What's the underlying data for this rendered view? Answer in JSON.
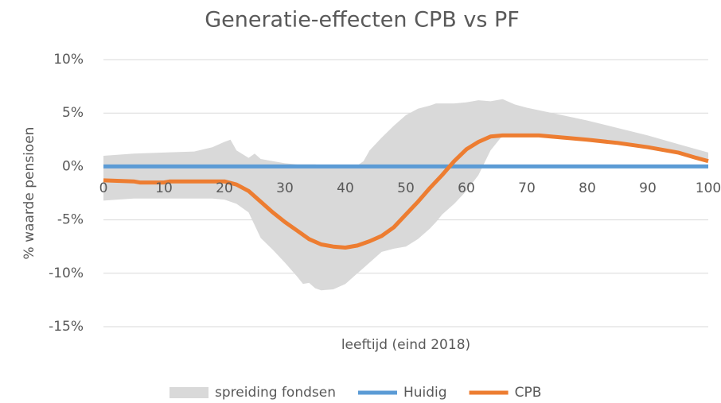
{
  "chart_data": {
    "type": "line",
    "title": "Generatie-effecten CPB vs PF",
    "x_label": "leeftijd (eind 2018)",
    "y_label": "% waarde pensioen",
    "xlim": [
      0,
      100
    ],
    "xticks": [
      0,
      10,
      20,
      30,
      40,
      50,
      60,
      70,
      80,
      90,
      100
    ],
    "ylim": [
      -15,
      10
    ],
    "yticks": [
      {
        "value": -15,
        "label": "-15%"
      },
      {
        "value": -10,
        "label": "-10%"
      },
      {
        "value": -5,
        "label": "-5%"
      },
      {
        "value": 0,
        "label": "0%"
      },
      {
        "value": 5,
        "label": "5%"
      },
      {
        "value": 10,
        "label": "10%"
      }
    ],
    "grid": true,
    "legend": "bottom",
    "series": [
      {
        "name": "spreiding fondsen",
        "type": "area",
        "color": "#d9d9d9",
        "x": [
          0,
          5,
          10,
          15,
          18,
          20,
          21,
          22,
          24,
          25,
          26,
          28,
          30,
          32,
          33,
          34,
          35,
          36,
          38,
          40,
          42,
          43,
          44,
          46,
          48,
          50,
          52,
          54,
          55,
          56,
          58,
          60,
          62,
          64,
          66,
          68,
          70,
          75,
          80,
          85,
          90,
          95,
          100
        ],
        "upper": [
          1.0,
          1.2,
          1.3,
          1.4,
          1.8,
          2.3,
          2.5,
          1.5,
          0.8,
          1.2,
          0.7,
          0.5,
          0.3,
          0.2,
          0.2,
          0.2,
          0.2,
          0.1,
          0.1,
          0.1,
          0.1,
          0.5,
          1.5,
          2.7,
          3.8,
          4.8,
          5.4,
          5.7,
          5.9,
          5.9,
          5.9,
          6.0,
          6.2,
          6.1,
          6.3,
          5.8,
          5.5,
          4.9,
          4.3,
          3.6,
          2.9,
          2.1,
          1.3
        ],
        "lower": [
          -3.2,
          -3.0,
          -3.0,
          -3.0,
          -3.0,
          -3.1,
          -3.3,
          -3.5,
          -4.3,
          -5.5,
          -6.7,
          -7.8,
          -9.0,
          -10.3,
          -11.0,
          -10.9,
          -11.4,
          -11.6,
          -11.5,
          -11.0,
          -10.0,
          -9.5,
          -9.0,
          -8.0,
          -7.7,
          -7.5,
          -6.8,
          -5.8,
          -5.2,
          -4.5,
          -3.5,
          -2.3,
          -0.8,
          1.5,
          2.9,
          2.9,
          2.9,
          2.7,
          2.4,
          2.1,
          1.8,
          1.2,
          0.5
        ]
      },
      {
        "name": "Huidig",
        "color": "#5b9bd5",
        "x": [
          0,
          100
        ],
        "values": [
          0,
          0
        ]
      },
      {
        "name": "CPB",
        "color": "#ed7d31",
        "x": [
          0,
          5,
          6,
          10,
          11,
          20,
          22,
          24,
          26,
          28,
          30,
          32,
          34,
          36,
          38,
          40,
          42,
          44,
          46,
          48,
          50,
          52,
          54,
          56,
          58,
          60,
          62,
          64,
          66,
          70,
          72,
          74,
          80,
          85,
          90,
          95,
          98,
          100
        ],
        "values": [
          -1.3,
          -1.4,
          -1.5,
          -1.5,
          -1.4,
          -1.4,
          -1.7,
          -2.3,
          -3.3,
          -4.3,
          -5.2,
          -6.0,
          -6.8,
          -7.3,
          -7.5,
          -7.6,
          -7.4,
          -7.0,
          -6.5,
          -5.7,
          -4.5,
          -3.3,
          -2.0,
          -0.8,
          0.5,
          1.6,
          2.3,
          2.8,
          2.9,
          2.9,
          2.9,
          2.8,
          2.5,
          2.2,
          1.8,
          1.3,
          0.8,
          0.5
        ]
      }
    ]
  }
}
